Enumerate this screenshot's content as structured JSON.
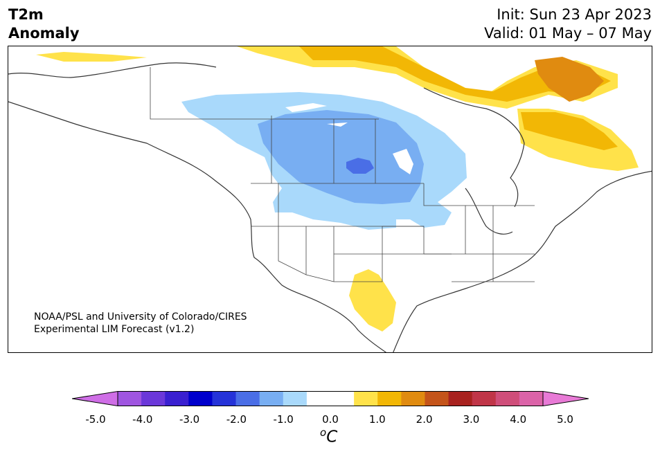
{
  "header": {
    "title_line1": "T2m",
    "title_line2": "Anomaly",
    "init": "Init: Sun 23 Apr 2023",
    "valid": "Valid: 01 May – 07 May"
  },
  "credit": {
    "line1": "NOAA/PSL and University of Colorado/CIRES",
    "line2": "Experimental LIM Forecast (v1.2)"
  },
  "colorbar": {
    "ticks": [
      "-5.0",
      "-4.0",
      "-3.0",
      "-2.0",
      "-1.0",
      "0.0",
      "1.0",
      "2.0",
      "3.0",
      "4.0",
      "5.0"
    ],
    "unit_base": "C",
    "unit_sup": "o",
    "min": -5.0,
    "max": 5.0,
    "step": 0.5,
    "colors": [
      "#cf6ee6",
      "#9f55e0",
      "#6b38d9",
      "#3a20d0",
      "#0000cc",
      "#2533d8",
      "#4a6ee6",
      "#78aef2",
      "#a9d9fb",
      "#ffffff",
      "#ffffff",
      "#ffe24a",
      "#f2b705",
      "#e08b10",
      "#c4541a",
      "#a8221f",
      "#c03548",
      "#cf4e7a",
      "#db63a8",
      "#e87ad6"
    ]
  },
  "map": {
    "anomaly_regions": [
      {
        "id": "cold-northern-plains-1",
        "level": -1.0,
        "color": "#a9d9fb"
      },
      {
        "id": "cold-northern-plains-2",
        "level": -1.5,
        "color": "#78aef2"
      },
      {
        "id": "cold-northern-plains-3",
        "level": -2.5,
        "color": "#4a6ee6"
      },
      {
        "id": "warm-labrador",
        "level": 1.5,
        "color": "#f2b705"
      },
      {
        "id": "warm-baffin",
        "level": 2.0,
        "color": "#e08b10"
      },
      {
        "id": "warm-mexico",
        "level": 0.5,
        "color": "#ffe24a"
      }
    ]
  }
}
